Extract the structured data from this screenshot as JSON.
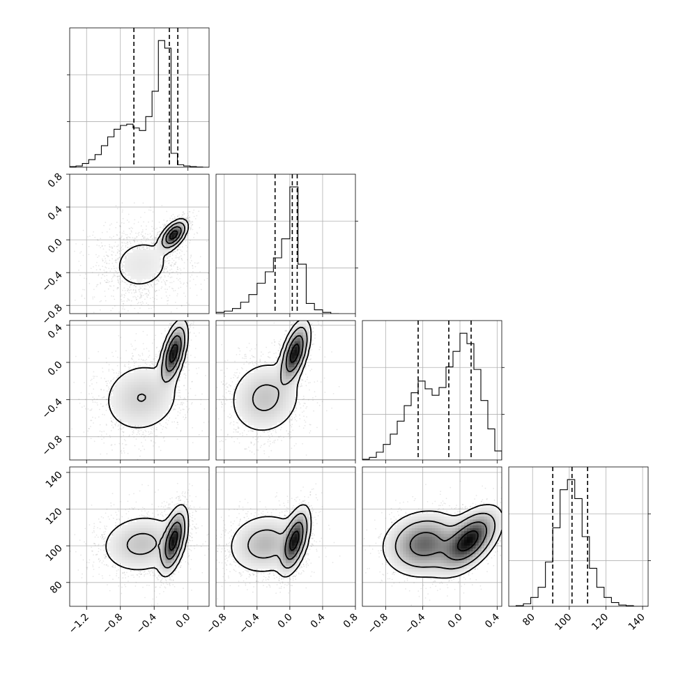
{
  "chart_data": {
    "type": "corner",
    "grid": true,
    "parameters": [
      {
        "range": [
          -1.4,
          0.25
        ],
        "ticks": [
          -1.2,
          -0.8,
          -0.4,
          0.0
        ],
        "tick_labels": [
          "−1.2",
          "−0.8",
          "−0.4",
          "0.0"
        ]
      },
      {
        "range": [
          -0.9,
          0.8
        ],
        "ticks": [
          -0.8,
          -0.4,
          0.0,
          0.4,
          0.8
        ],
        "tick_labels": [
          "−0.8",
          "−0.4",
          "0.0",
          "0.4",
          "0.8"
        ]
      },
      {
        "range": [
          -1.05,
          0.45
        ],
        "ticks": [
          -0.8,
          -0.4,
          0.0,
          0.4
        ],
        "tick_labels": [
          "−0.8",
          "−0.4",
          "0.0",
          "0.4"
        ]
      },
      {
        "range": [
          67,
          143
        ],
        "ticks": [
          80,
          100,
          120,
          140
        ],
        "tick_labels": [
          "80",
          "100",
          "120",
          "140"
        ]
      }
    ],
    "histograms": [
      {
        "quantiles": [
          -0.64,
          -0.22,
          -0.12
        ],
        "bins": [
          -1.4,
          -1.325,
          -1.25,
          -1.175,
          -1.1,
          -1.025,
          -0.95,
          -0.875,
          -0.8,
          -0.725,
          -0.65,
          -0.575,
          -0.5,
          -0.425,
          -0.35,
          -0.275,
          -0.2,
          -0.125,
          -0.05,
          0.025,
          0.1,
          0.175,
          0.25
        ],
        "counts": [
          0.005,
          0.01,
          0.03,
          0.06,
          0.1,
          0.17,
          0.24,
          0.3,
          0.33,
          0.34,
          0.31,
          0.29,
          0.4,
          0.6,
          1.0,
          0.94,
          0.11,
          0.02,
          0.01,
          0.005,
          0.002,
          0.0
        ]
      },
      {
        "quantiles": [
          -0.18,
          0.03,
          0.09
        ],
        "bins": [
          -0.9,
          -0.8,
          -0.7,
          -0.6,
          -0.5,
          -0.4,
          -0.3,
          -0.2,
          -0.1,
          0.0,
          0.1,
          0.2,
          0.3,
          0.4,
          0.5,
          0.6
        ],
        "counts": [
          0.01,
          0.02,
          0.04,
          0.09,
          0.15,
          0.24,
          0.33,
          0.44,
          0.59,
          1.0,
          0.39,
          0.08,
          0.03,
          0.01,
          0.0
        ]
      },
      {
        "quantiles": [
          -0.45,
          -0.12,
          0.12
        ],
        "bins": [
          -1.05,
          -0.975,
          -0.9,
          -0.825,
          -0.75,
          -0.675,
          -0.6,
          -0.525,
          -0.45,
          -0.375,
          -0.3,
          -0.225,
          -0.15,
          -0.075,
          0.0,
          0.075,
          0.15,
          0.225,
          0.3,
          0.375,
          0.45
        ],
        "counts": [
          0.005,
          0.02,
          0.06,
          0.12,
          0.2,
          0.3,
          0.42,
          0.52,
          0.61,
          0.55,
          0.5,
          0.56,
          0.72,
          0.84,
          0.98,
          0.9,
          0.7,
          0.46,
          0.24,
          0.07
        ]
      },
      {
        "quantiles": [
          91,
          101.5,
          110
        ],
        "bins": [
          67,
          71,
          75,
          79,
          83,
          87,
          91,
          95,
          99,
          103,
          107,
          111,
          115,
          119,
          123,
          127,
          131,
          135,
          139,
          143
        ],
        "counts": [
          0.0,
          0.005,
          0.02,
          0.07,
          0.15,
          0.35,
          0.62,
          0.92,
          1.0,
          0.85,
          0.55,
          0.3,
          0.15,
          0.07,
          0.03,
          0.01,
          0.005,
          0.0,
          0.0
        ]
      }
    ],
    "modes": [
      {
        "mu": [
          -0.55,
          -0.3,
          -0.38,
          101
        ],
        "sd": [
          0.24,
          0.22,
          0.2,
          8
        ],
        "corr": 0.1,
        "weight": 0.5
      },
      {
        "mu": [
          -0.17,
          0.06,
          0.1,
          103
        ],
        "sd": [
          0.07,
          0.08,
          0.15,
          8
        ],
        "corr": 0.55,
        "weight": 0.5
      }
    ]
  }
}
